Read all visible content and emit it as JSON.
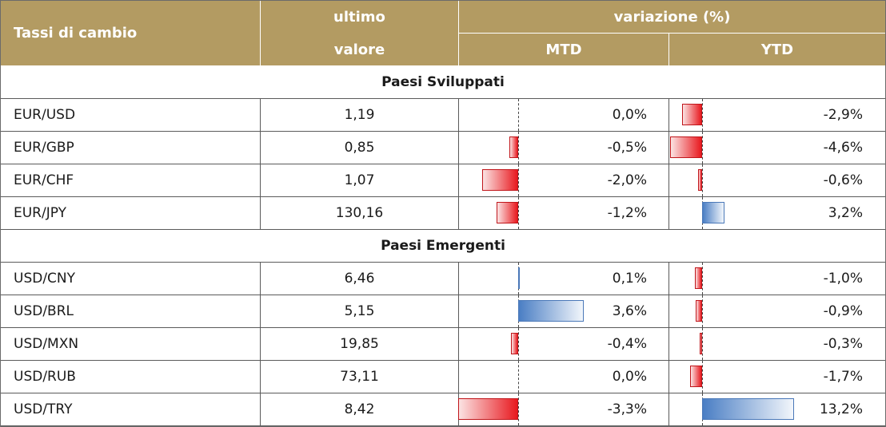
{
  "header": {
    "title": "Tassi di cambio",
    "last_line1": "ultimo",
    "last_line2": "valore",
    "variation": "variazione (%)",
    "mtd": "MTD",
    "ytd": "YTD"
  },
  "sections": [
    {
      "title": "Paesi Sviluppati",
      "rows": [
        {
          "pair": "EUR/USD",
          "value": "1,19",
          "mtd": "0,0%",
          "ytd": "-2,9%",
          "mtd_num": 0.0,
          "ytd_num": -2.9
        },
        {
          "pair": "EUR/GBP",
          "value": "0,85",
          "mtd": "-0,5%",
          "ytd": "-4,6%",
          "mtd_num": -0.5,
          "ytd_num": -4.6
        },
        {
          "pair": "EUR/CHF",
          "value": "1,07",
          "mtd": "-2,0%",
          "ytd": "-0,6%",
          "mtd_num": -2.0,
          "ytd_num": -0.6
        },
        {
          "pair": "EUR/JPY",
          "value": "130,16",
          "mtd": "-1,2%",
          "ytd": "3,2%",
          "mtd_num": -1.2,
          "ytd_num": 3.2
        }
      ]
    },
    {
      "title": "Paesi Emergenti",
      "rows": [
        {
          "pair": "USD/CNY",
          "value": "6,46",
          "mtd": "0,1%",
          "ytd": "-1,0%",
          "mtd_num": 0.1,
          "ytd_num": -1.0
        },
        {
          "pair": "USD/BRL",
          "value": "5,15",
          "mtd": "3,6%",
          "ytd": "-0,9%",
          "mtd_num": 3.6,
          "ytd_num": -0.9
        },
        {
          "pair": "USD/MXN",
          "value": "19,85",
          "mtd": "-0,4%",
          "ytd": "-0,3%",
          "mtd_num": -0.4,
          "ytd_num": -0.3
        },
        {
          "pair": "USD/RUB",
          "value": "73,11",
          "mtd": "0,0%",
          "ytd": "-1,7%",
          "mtd_num": 0.0,
          "ytd_num": -1.7
        },
        {
          "pair": "USD/TRY",
          "value": "8,42",
          "mtd": "-3,3%",
          "ytd": "13,2%",
          "mtd_num": -3.3,
          "ytd_num": 13.2
        }
      ]
    }
  ],
  "colors": {
    "header_bg": "#b39b62",
    "negative_bar": "#e8191f",
    "positive_bar": "#4a7ec4"
  }
}
